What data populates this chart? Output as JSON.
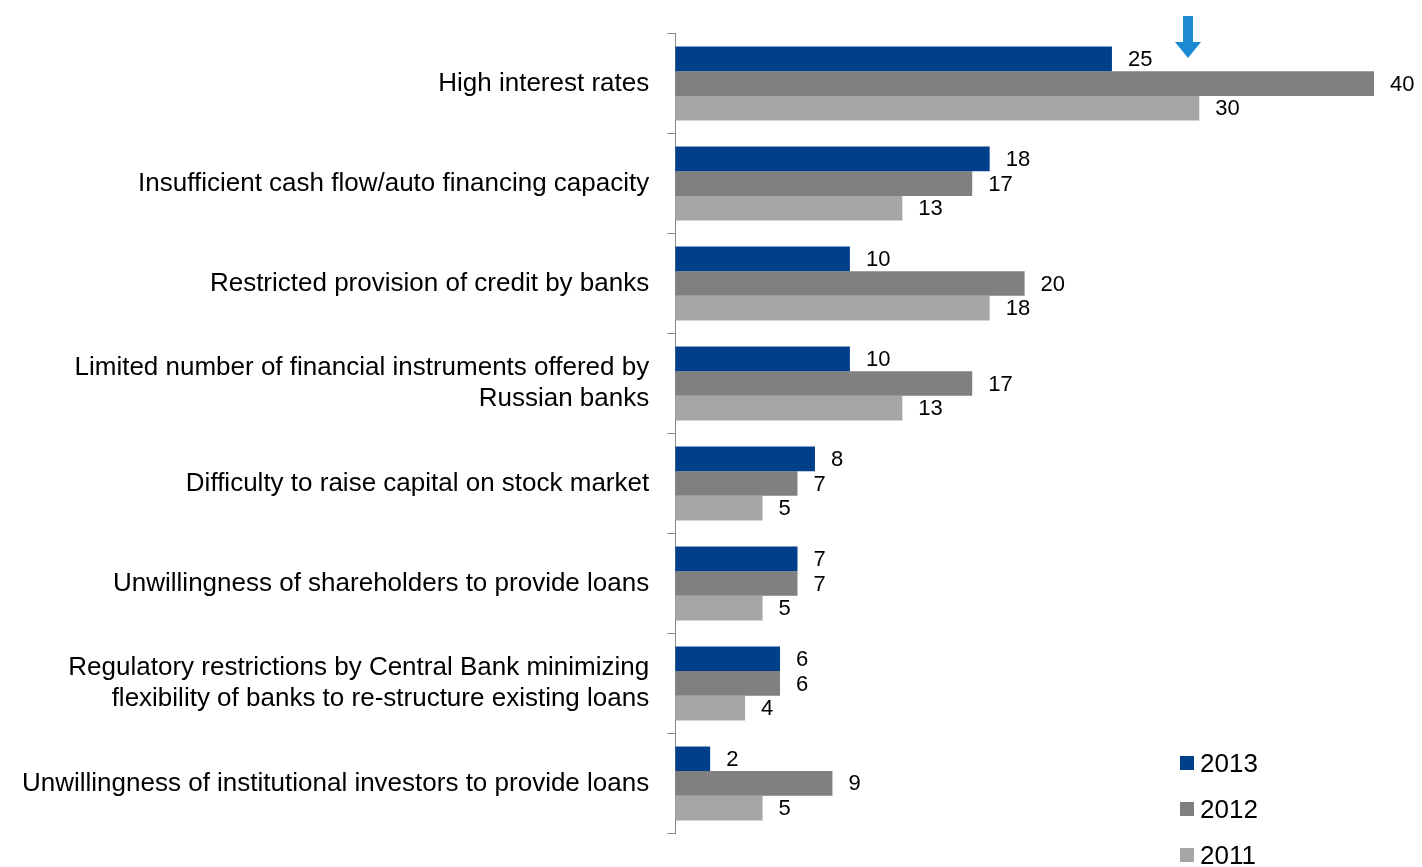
{
  "chart_data": {
    "type": "bar",
    "orientation": "horizontal",
    "categories": [
      "High interest rates",
      "Insufficient cash flow/auto financing capacity",
      "Restricted provision of credit by banks",
      "Limited number of financial instruments offered by Russian banks",
      "Difficulty to raise capital on stock market",
      "Unwillingness of shareholders to provide loans",
      "Regulatory restrictions by Central Bank minimizing flexibility of banks to re-structure existing loans",
      "Unwillingness of institutional investors to provide loans"
    ],
    "series": [
      {
        "name": "2013",
        "color": "#00408a",
        "values": [
          25,
          18,
          10,
          10,
          8,
          7,
          6,
          2
        ]
      },
      {
        "name": "2012",
        "color": "#808080",
        "values": [
          40,
          17,
          20,
          17,
          7,
          7,
          6,
          9
        ]
      },
      {
        "name": "2011",
        "color": "#a6a6a6",
        "values": [
          30,
          13,
          18,
          13,
          5,
          5,
          4,
          5
        ]
      }
    ],
    "data_labels": true,
    "legend": "bottom right"
  }
}
